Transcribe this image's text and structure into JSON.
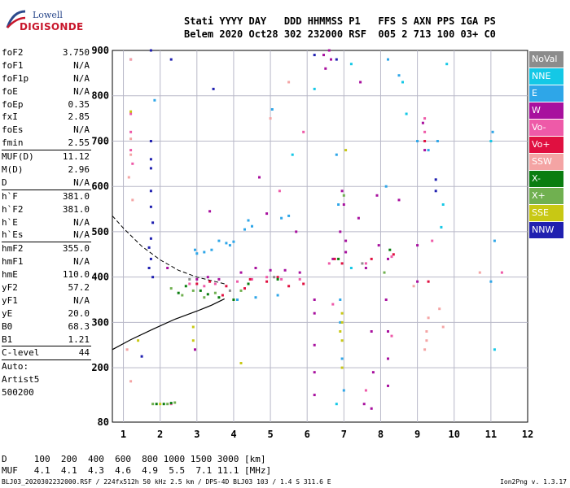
{
  "logo": {
    "line1": "Lowell",
    "line2": "DIGISONDE"
  },
  "header": {
    "line1": "Stati YYYY DAY   DDD HHMMSS P1   FFS S AXN PPS IGA PS",
    "line2": "Belem 2020 Oct28 302 232000 RSF  005 2 713 100 03+ C0"
  },
  "params": [
    {
      "k": "foF2",
      "v": "3.750"
    },
    {
      "k": "foF1",
      "v": "N/A"
    },
    {
      "k": "foF1p",
      "v": "N/A"
    },
    {
      "k": "foE",
      "v": "N/A"
    },
    {
      "k": "foEp",
      "v": "0.35"
    },
    {
      "k": "fxI",
      "v": "2.85"
    },
    {
      "k": "foEs",
      "v": "N/A"
    },
    {
      "k": "fmin",
      "v": "2.55"
    },
    {
      "sep": true
    },
    {
      "k": "MUF(D)",
      "v": "11.12"
    },
    {
      "k": "M(D)",
      "v": "2.96"
    },
    {
      "k": "D",
      "v": "N/A"
    },
    {
      "sep": true
    },
    {
      "k": "h`F",
      "v": "381.0"
    },
    {
      "k": "h`F2",
      "v": "381.0"
    },
    {
      "k": "h`E",
      "v": "N/A"
    },
    {
      "k": "h`Es",
      "v": "N/A"
    },
    {
      "sep": true
    },
    {
      "k": "hmF2",
      "v": "355.0"
    },
    {
      "k": "hmF1",
      "v": "N/A"
    },
    {
      "k": "hmE",
      "v": "110.0"
    },
    {
      "k": "yF2",
      "v": "57.2"
    },
    {
      "k": "yF1",
      "v": "N/A"
    },
    {
      "k": "yE",
      "v": "20.0"
    },
    {
      "k": "B0",
      "v": "68.3"
    },
    {
      "k": "B1",
      "v": "1.21"
    },
    {
      "sep": true
    },
    {
      "k": "C-level",
      "v": "44"
    },
    {
      "sep": true
    },
    {
      "k": "Auto:",
      "v": ""
    },
    {
      "k": "Artist5",
      "v": ""
    },
    {
      "k": "500200",
      "v": ""
    }
  ],
  "legend": [
    {
      "label": "NoVal",
      "color": "#8c8c8c"
    },
    {
      "label": "NNE",
      "color": "#14c8e6"
    },
    {
      "label": "E",
      "color": "#2ea6e8"
    },
    {
      "label": "W",
      "color": "#a8109e"
    },
    {
      "label": "Vo-",
      "color": "#ee5aa8"
    },
    {
      "label": "Vo+",
      "color": "#e01040"
    },
    {
      "label": "SSW",
      "color": "#f4a4a4"
    },
    {
      "label": "X-",
      "color": "#0a7d10"
    },
    {
      "label": "X+",
      "color": "#70b050"
    },
    {
      "label": "SSE",
      "color": "#c8c814"
    },
    {
      "label": "NNW",
      "color": "#2020b0"
    }
  ],
  "bottom": {
    "row1": "D     100  200  400  600  800 1000 1500 3000 [km]",
    "row2": "MUF   4.1  4.1  4.3  4.6  4.9  5.5  7.1 11.1 [MHz]"
  },
  "footer": "BLJ03_2020302232000.RSF / 224fx512h 50 kHz 2.5 km / DPS-4D BLJ03 103 / 1.4 S 311.6 E",
  "version": "Ion2Png v. 1.3.17",
  "chart_data": {
    "type": "scatter",
    "xlim": [
      0.7,
      12
    ],
    "ylim": [
      80,
      900
    ],
    "x_ticks": [
      1,
      2,
      3,
      4,
      5,
      6,
      7,
      8,
      9,
      10,
      11,
      12
    ],
    "y_ticks": [
      80,
      200,
      300,
      400,
      500,
      600,
      700,
      800,
      900
    ],
    "grid": true,
    "legend_position": "right",
    "o_trace": [
      [
        0.7,
        240
      ],
      [
        1.2,
        262
      ],
      [
        1.8,
        285
      ],
      [
        2.4,
        307
      ],
      [
        3.0,
        325
      ],
      [
        3.4,
        338
      ],
      [
        3.75,
        352
      ]
    ],
    "extrapolation_dashed": [
      [
        0.7,
        535
      ],
      [
        1.0,
        508
      ],
      [
        1.5,
        468
      ],
      [
        2.0,
        438
      ],
      [
        2.5,
        415
      ],
      [
        3.0,
        400
      ],
      [
        3.5,
        390
      ],
      [
        3.75,
        385
      ]
    ],
    "series": [
      {
        "name": "NNW",
        "color": "#2020b0",
        "points": [
          [
            1.75,
            700
          ],
          [
            1.75,
            660
          ],
          [
            1.75,
            640
          ],
          [
            1.75,
            590
          ],
          [
            1.75,
            555
          ],
          [
            1.8,
            520
          ],
          [
            1.75,
            485
          ],
          [
            1.7,
            465
          ],
          [
            1.75,
            440
          ],
          [
            1.7,
            420
          ],
          [
            1.8,
            400
          ],
          [
            1.75,
            900
          ],
          [
            2.3,
            880
          ],
          [
            3.45,
            815
          ],
          [
            6.8,
            880
          ],
          [
            6.2,
            890
          ],
          [
            9.5,
            615
          ],
          [
            9.5,
            590
          ],
          [
            1.5,
            225
          ]
        ]
      },
      {
        "name": "E",
        "color": "#2ea6e8",
        "points": [
          [
            3.6,
            480
          ],
          [
            3.8,
            475
          ],
          [
            3.9,
            470
          ],
          [
            4.0,
            478
          ],
          [
            4.3,
            505
          ],
          [
            4.4,
            525
          ],
          [
            4.5,
            512
          ],
          [
            3.4,
            460
          ],
          [
            3.2,
            455
          ],
          [
            3.0,
            452
          ],
          [
            2.95,
            460
          ],
          [
            4.1,
            350
          ],
          [
            4.6,
            355
          ],
          [
            5.2,
            360
          ],
          [
            5.3,
            530
          ],
          [
            5.5,
            535
          ],
          [
            6.9,
            350
          ],
          [
            6.9,
            300
          ],
          [
            6.95,
            220
          ],
          [
            7.0,
            150
          ],
          [
            8.15,
            600
          ],
          [
            8.2,
            880
          ],
          [
            8.5,
            845
          ],
          [
            9.0,
            700
          ],
          [
            9.3,
            680
          ],
          [
            9.55,
            700
          ],
          [
            11.05,
            720
          ],
          [
            11.1,
            480
          ],
          [
            11.0,
            390
          ],
          [
            6.8,
            670
          ],
          [
            6.85,
            560
          ],
          [
            5.05,
            770
          ],
          [
            1.85,
            790
          ]
        ]
      },
      {
        "name": "NNE",
        "color": "#14c8e6",
        "points": [
          [
            8.6,
            830
          ],
          [
            9.8,
            870
          ],
          [
            7.2,
            870
          ],
          [
            8.7,
            760
          ],
          [
            11.0,
            700
          ],
          [
            9.7,
            560
          ],
          [
            9.65,
            510
          ],
          [
            5.6,
            670
          ],
          [
            11.1,
            240
          ],
          [
            6.2,
            815
          ],
          [
            7.2,
            420
          ],
          [
            6.8,
            120
          ]
        ]
      },
      {
        "name": "W",
        "color": "#a8109e",
        "points": [
          [
            3.0,
            395
          ],
          [
            3.3,
            400
          ],
          [
            3.6,
            395
          ],
          [
            4.2,
            410
          ],
          [
            4.6,
            420
          ],
          [
            5.0,
            415
          ],
          [
            5.4,
            415
          ],
          [
            5.8,
            410
          ],
          [
            6.7,
            440
          ],
          [
            7.6,
            420
          ],
          [
            8.2,
            440
          ],
          [
            9.0,
            390
          ],
          [
            6.2,
            350
          ],
          [
            6.2,
            320
          ],
          [
            6.2,
            250
          ],
          [
            6.2,
            190
          ],
          [
            6.2,
            140
          ],
          [
            8.15,
            350
          ],
          [
            8.2,
            280
          ],
          [
            8.2,
            220
          ],
          [
            8.2,
            160
          ],
          [
            7.8,
            190
          ],
          [
            7.75,
            280
          ],
          [
            7.75,
            110
          ],
          [
            7.55,
            120
          ],
          [
            6.95,
            590
          ],
          [
            7.0,
            560
          ],
          [
            6.9,
            500
          ],
          [
            7.05,
            480
          ],
          [
            7.05,
            455
          ],
          [
            7.95,
            470
          ],
          [
            7.9,
            580
          ],
          [
            9.15,
            740
          ],
          [
            9.2,
            680
          ],
          [
            9.0,
            470
          ],
          [
            8.5,
            570
          ],
          [
            3.35,
            545
          ],
          [
            2.2,
            420
          ],
          [
            4.7,
            620
          ],
          [
            4.9,
            540
          ],
          [
            6.45,
            890
          ],
          [
            6.65,
            880
          ],
          [
            6.5,
            860
          ],
          [
            6.6,
            900
          ],
          [
            7.45,
            830
          ],
          [
            1.2,
            880
          ],
          [
            2.95,
            240
          ],
          [
            5.7,
            500
          ],
          [
            7.4,
            530
          ]
        ]
      },
      {
        "name": "Vo-",
        "color": "#ee5aa8",
        "points": [
          [
            2.8,
            385
          ],
          [
            3.2,
            380
          ],
          [
            3.5,
            385
          ],
          [
            4.1,
            390
          ],
          [
            4.5,
            395
          ],
          [
            4.9,
            400
          ],
          [
            5.3,
            395
          ],
          [
            5.8,
            395
          ],
          [
            6.6,
            430
          ],
          [
            7.6,
            430
          ],
          [
            8.3,
            445
          ],
          [
            1.2,
            760
          ],
          [
            1.2,
            720
          ],
          [
            1.2,
            680
          ],
          [
            1.25,
            650
          ],
          [
            9.2,
            750
          ],
          [
            9.2,
            720
          ],
          [
            9.4,
            480
          ],
          [
            5.25,
            590
          ],
          [
            6.7,
            340
          ],
          [
            8.3,
            270
          ],
          [
            7.6,
            150
          ],
          [
            2.3,
            120
          ],
          [
            5.9,
            720
          ],
          [
            11.3,
            410
          ]
        ]
      },
      {
        "name": "Vo+",
        "color": "#e01040",
        "points": [
          [
            3.0,
            385
          ],
          [
            3.35,
            390
          ],
          [
            3.8,
            380
          ],
          [
            4.3,
            375
          ],
          [
            4.45,
            395
          ],
          [
            4.9,
            390
          ],
          [
            5.2,
            400
          ],
          [
            5.5,
            380
          ],
          [
            5.9,
            385
          ],
          [
            6.75,
            440
          ],
          [
            7.75,
            440
          ],
          [
            8.35,
            450
          ],
          [
            3.7,
            360
          ],
          [
            9.2,
            700
          ],
          [
            9.3,
            390
          ],
          [
            6.95,
            430
          ]
        ]
      },
      {
        "name": "SSW",
        "color": "#f4a4a4",
        "points": [
          [
            1.2,
            705
          ],
          [
            1.2,
            670
          ],
          [
            1.15,
            620
          ],
          [
            1.25,
            570
          ],
          [
            1.2,
            880
          ],
          [
            9.25,
            280
          ],
          [
            9.25,
            260
          ],
          [
            9.2,
            240
          ],
          [
            9.3,
            310
          ],
          [
            10.7,
            410
          ],
          [
            5.0,
            750
          ],
          [
            5.5,
            830
          ],
          [
            8.9,
            380
          ],
          [
            9.6,
            330
          ],
          [
            9.7,
            290
          ],
          [
            1.1,
            240
          ],
          [
            1.2,
            170
          ]
        ]
      },
      {
        "name": "X-",
        "color": "#0a7d10",
        "points": [
          [
            2.7,
            380
          ],
          [
            2.5,
            365
          ],
          [
            3.1,
            370
          ],
          [
            3.3,
            362
          ],
          [
            3.6,
            355
          ],
          [
            4.0,
            350
          ],
          [
            4.4,
            385
          ],
          [
            1.9,
            120
          ],
          [
            2.1,
            120
          ],
          [
            2.3,
            122
          ],
          [
            8.25,
            460
          ],
          [
            6.85,
            440
          ],
          [
            5.2,
            395
          ]
        ]
      },
      {
        "name": "X+",
        "color": "#70b050",
        "points": [
          [
            2.3,
            375
          ],
          [
            2.6,
            360
          ],
          [
            2.9,
            370
          ],
          [
            3.2,
            355
          ],
          [
            3.5,
            365
          ],
          [
            4.2,
            370
          ],
          [
            2.2,
            120
          ],
          [
            2.4,
            123
          ],
          [
            1.8,
            120
          ],
          [
            7.0,
            580
          ],
          [
            8.1,
            410
          ]
        ]
      },
      {
        "name": "SSE",
        "color": "#c8c814",
        "points": [
          [
            1.2,
            765
          ],
          [
            6.95,
            320
          ],
          [
            6.95,
            300
          ],
          [
            6.9,
            280
          ],
          [
            6.95,
            260
          ],
          [
            4.2,
            210
          ],
          [
            2.9,
            260
          ],
          [
            2.9,
            290
          ],
          [
            7.05,
            680
          ],
          [
            1.4,
            260
          ],
          [
            2.0,
            120
          ],
          [
            6.95,
            200
          ]
        ]
      },
      {
        "name": "NoVal",
        "color": "#8c8c8c",
        "points": [
          [
            2.8,
            395
          ],
          [
            5.1,
            400
          ],
          [
            7.5,
            430
          ],
          [
            3.9,
            370
          ]
        ]
      }
    ]
  }
}
